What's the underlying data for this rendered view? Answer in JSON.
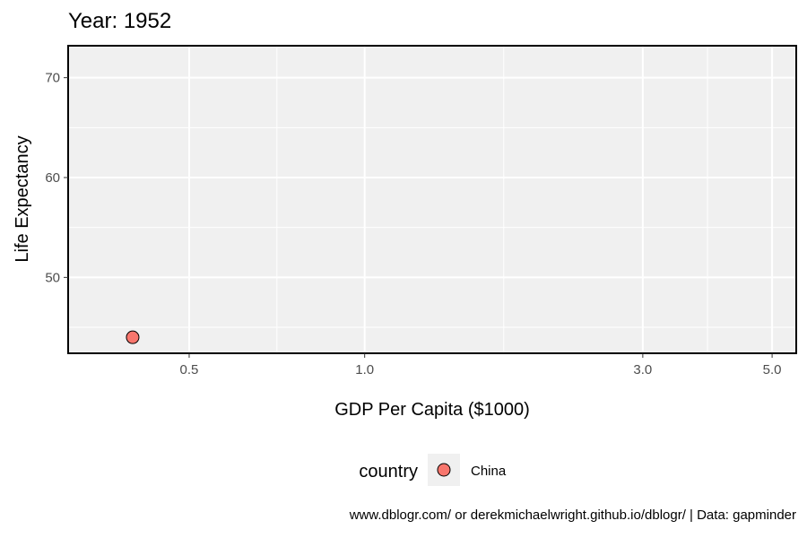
{
  "chart_data": {
    "type": "scatter",
    "title": "Year: 1952",
    "xlabel": "GDP Per Capita ($1000)",
    "ylabel": "Life Expectancy",
    "x_scale": "log",
    "x_ticks": [
      0.5,
      1.0,
      3.0,
      5.0
    ],
    "x_tick_labels": [
      "0.5",
      "1.0",
      "3.0",
      "5.0"
    ],
    "y_ticks": [
      50,
      60,
      70
    ],
    "y_tick_labels": [
      "50",
      "60",
      "70"
    ],
    "xlim": [
      0.31,
      5.5
    ],
    "ylim": [
      42.4,
      73.2
    ],
    "grid": true,
    "legend_position": "bottom",
    "legend_title": "country",
    "series": [
      {
        "name": "China",
        "color": "#F8766D",
        "points": [
          {
            "x": 0.4,
            "y": 44.0
          }
        ]
      }
    ],
    "caption": "www.dblogr.com/ or derekmichaelwright.github.io/dblogr/ | Data: gapminder"
  }
}
